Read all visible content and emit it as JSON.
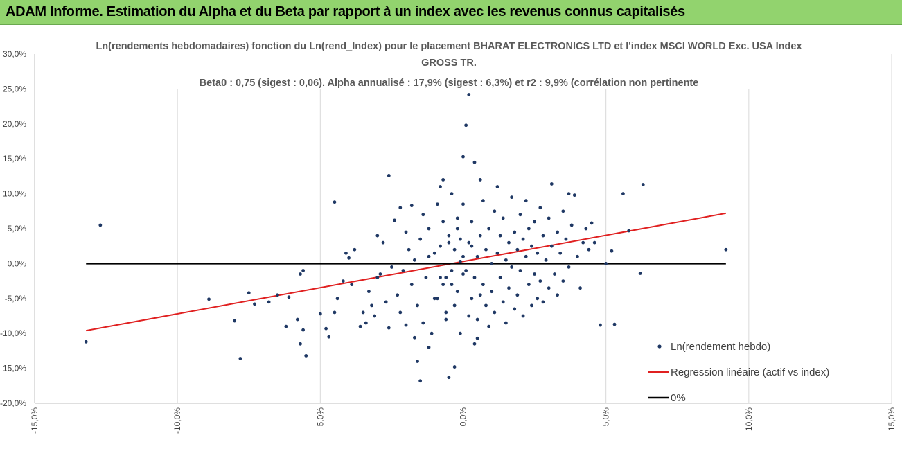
{
  "banner": {
    "title": "ADAM Informe. Estimation du Alpha et du Beta par rapport à un index avec les revenus connus capitalisés"
  },
  "colors": {
    "banner": "#92d36e",
    "points": "#1f3864",
    "regression": "#e02020",
    "zero": "#000000",
    "grid": "#d9d9d9"
  },
  "chart_data": {
    "type": "scatter",
    "title_lines": [
      "Ln(rendements hebdomadaires) fonction du Ln(rend_Index) pour le placement BHARAT ELECTRONICS LTD et l'index MSCI WORLD Exc. USA Index",
      "GROSS TR.",
      "Beta0 : 0,75  (sigest : 0,06).  Alpha annualisé : 17,9% (sigest : 6,3%) et r2 : 9,9% (corrélation non pertinente"
    ],
    "xlim": [
      -0.15,
      0.15
    ],
    "ylim": [
      -0.2,
      0.3
    ],
    "x_ticks": [
      "-15,0%",
      "-10,0%",
      "-5,0%",
      "0,0%",
      "5,0%",
      "10,0%",
      "15,0%"
    ],
    "y_ticks": [
      "30,0%",
      "25,0%",
      "20,0%",
      "15,0%",
      "10,0%",
      "5,0%",
      "0,0%",
      "-5,0%",
      "-10,0%",
      "-15,0%",
      "-20,0%"
    ],
    "grid": "vertical",
    "legend_position": "bottom-right",
    "series": [
      {
        "name": "Ln(rendement hebdo)",
        "kind": "scatter",
        "points": [
          [
            -0.132,
            -0.112
          ],
          [
            -0.127,
            0.055
          ],
          [
            -0.089,
            -0.051
          ],
          [
            -0.08,
            -0.082
          ],
          [
            -0.078,
            -0.136
          ],
          [
            -0.075,
            -0.042
          ],
          [
            -0.073,
            -0.058
          ],
          [
            -0.068,
            -0.055
          ],
          [
            -0.065,
            -0.045
          ],
          [
            -0.062,
            -0.09
          ],
          [
            -0.061,
            -0.048
          ],
          [
            -0.058,
            -0.08
          ],
          [
            -0.057,
            -0.115
          ],
          [
            -0.056,
            -0.095
          ],
          [
            -0.057,
            -0.015
          ],
          [
            -0.056,
            -0.01
          ],
          [
            -0.055,
            -0.132
          ],
          [
            -0.05,
            -0.072
          ],
          [
            -0.048,
            -0.093
          ],
          [
            -0.047,
            -0.105
          ],
          [
            -0.045,
            -0.07
          ],
          [
            -0.044,
            -0.05
          ],
          [
            -0.045,
            0.088
          ],
          [
            -0.042,
            -0.025
          ],
          [
            -0.041,
            0.015
          ],
          [
            -0.04,
            0.008
          ],
          [
            -0.039,
            -0.03
          ],
          [
            -0.038,
            0.02
          ],
          [
            -0.036,
            -0.09
          ],
          [
            -0.035,
            -0.07
          ],
          [
            -0.034,
            -0.085
          ],
          [
            -0.033,
            -0.04
          ],
          [
            -0.032,
            -0.06
          ],
          [
            -0.031,
            -0.075
          ],
          [
            -0.03,
            -0.02
          ],
          [
            -0.03,
            0.04
          ],
          [
            -0.029,
            -0.015
          ],
          [
            -0.028,
            0.03
          ],
          [
            -0.027,
            -0.055
          ],
          [
            -0.026,
            -0.092
          ],
          [
            -0.025,
            -0.005
          ],
          [
            -0.024,
            0.062
          ],
          [
            -0.023,
            -0.045
          ],
          [
            -0.022,
            -0.07
          ],
          [
            -0.021,
            -0.01
          ],
          [
            -0.02,
            -0.088
          ],
          [
            -0.019,
            0.02
          ],
          [
            -0.018,
            -0.03
          ],
          [
            -0.017,
            0.005
          ],
          [
            -0.016,
            -0.06
          ],
          [
            -0.015,
            0.035
          ],
          [
            -0.014,
            -0.085
          ],
          [
            -0.013,
            -0.02
          ],
          [
            -0.012,
            0.01
          ],
          [
            -0.011,
            -0.1
          ],
          [
            -0.01,
            0.015
          ],
          [
            -0.009,
            -0.05
          ],
          [
            -0.008,
            0.025
          ],
          [
            -0.007,
            -0.03
          ],
          [
            -0.006,
            -0.07
          ],
          [
            -0.005,
            0.04
          ],
          [
            -0.004,
            -0.01
          ],
          [
            -0.003,
            0.02
          ],
          [
            -0.002,
            -0.04
          ],
          [
            -0.001,
            0.003
          ],
          [
            -0.026,
            0.126
          ],
          [
            -0.022,
            0.08
          ],
          [
            -0.02,
            0.045
          ],
          [
            -0.018,
            0.083
          ],
          [
            -0.017,
            -0.106
          ],
          [
            -0.016,
            -0.14
          ],
          [
            -0.015,
            -0.168
          ],
          [
            -0.014,
            0.07
          ],
          [
            -0.012,
            0.05
          ],
          [
            -0.01,
            -0.05
          ],
          [
            -0.009,
            0.085
          ],
          [
            -0.008,
            -0.02
          ],
          [
            -0.007,
            0.06
          ],
          [
            -0.006,
            -0.08
          ],
          [
            -0.005,
            -0.163
          ],
          [
            -0.004,
            0.1
          ],
          [
            -0.003,
            -0.06
          ],
          [
            -0.002,
            0.05
          ],
          [
            -0.001,
            -0.1
          ],
          [
            -0.012,
            -0.12
          ],
          [
            -0.008,
            0.11
          ],
          [
            -0.007,
            0.12
          ],
          [
            -0.006,
            -0.02
          ],
          [
            -0.005,
            0.03
          ],
          [
            -0.004,
            -0.03
          ],
          [
            0.0,
            0.01
          ],
          [
            0.0,
            -0.015
          ],
          [
            0.0,
            0.153
          ],
          [
            0.001,
            0.198
          ],
          [
            0.002,
            0.242
          ],
          [
            0.001,
            -0.01
          ],
          [
            0.002,
            0.03
          ],
          [
            0.003,
            -0.05
          ],
          [
            0.003,
            0.06
          ],
          [
            0.004,
            -0.02
          ],
          [
            0.004,
            0.145
          ],
          [
            0.005,
            0.01
          ],
          [
            0.005,
            -0.08
          ],
          [
            0.006,
            0.12
          ],
          [
            0.006,
            0.04
          ],
          [
            0.007,
            -0.03
          ],
          [
            0.007,
            0.09
          ],
          [
            0.008,
            -0.06
          ],
          [
            0.008,
            0.02
          ],
          [
            0.009,
            -0.09
          ],
          [
            0.009,
            0.05
          ],
          [
            0.01,
            0.0
          ],
          [
            0.01,
            -0.04
          ],
          [
            0.011,
            0.075
          ],
          [
            0.011,
            -0.07
          ],
          [
            0.012,
            0.015
          ],
          [
            0.012,
            0.11
          ],
          [
            0.013,
            -0.02
          ],
          [
            0.013,
            0.04
          ],
          [
            0.014,
            -0.055
          ],
          [
            0.014,
            0.065
          ],
          [
            0.015,
            0.005
          ],
          [
            0.015,
            -0.085
          ],
          [
            0.016,
            0.03
          ],
          [
            0.016,
            -0.035
          ],
          [
            0.017,
            0.095
          ],
          [
            0.017,
            -0.005
          ],
          [
            0.018,
            0.045
          ],
          [
            0.018,
            -0.065
          ],
          [
            0.019,
            0.02
          ],
          [
            0.019,
            -0.045
          ],
          [
            0.02,
            0.07
          ],
          [
            0.02,
            -0.01
          ],
          [
            0.021,
            0.035
          ],
          [
            0.021,
            -0.075
          ],
          [
            0.022,
            0.01
          ],
          [
            0.022,
            0.09
          ],
          [
            0.023,
            -0.03
          ],
          [
            0.023,
            0.05
          ],
          [
            0.024,
            -0.06
          ],
          [
            0.024,
            0.025
          ],
          [
            0.025,
            -0.015
          ],
          [
            0.025,
            0.06
          ],
          [
            0.026,
            -0.05
          ],
          [
            0.026,
            0.015
          ],
          [
            0.027,
            0.08
          ],
          [
            0.027,
            -0.025
          ],
          [
            0.028,
            0.04
          ],
          [
            0.028,
            -0.055
          ],
          [
            0.029,
            0.005
          ],
          [
            0.03,
            0.065
          ],
          [
            0.03,
            -0.035
          ],
          [
            0.031,
            0.025
          ],
          [
            0.031,
            0.114
          ],
          [
            0.032,
            -0.015
          ],
          [
            0.033,
            0.045
          ],
          [
            0.033,
            -0.045
          ],
          [
            0.034,
            0.015
          ],
          [
            0.035,
            0.075
          ],
          [
            0.035,
            -0.025
          ],
          [
            0.036,
            0.035
          ],
          [
            0.037,
            0.1
          ],
          [
            0.037,
            -0.005
          ],
          [
            0.038,
            0.055
          ],
          [
            0.039,
            0.098
          ],
          [
            0.04,
            0.01
          ],
          [
            0.041,
            -0.035
          ],
          [
            0.042,
            0.03
          ],
          [
            0.043,
            0.05
          ],
          [
            0.044,
            0.02
          ],
          [
            0.045,
            0.058
          ],
          [
            0.046,
            0.03
          ],
          [
            0.048,
            -0.088
          ],
          [
            0.05,
            0.0
          ],
          [
            0.052,
            0.018
          ],
          [
            0.053,
            -0.087
          ],
          [
            0.056,
            0.1
          ],
          [
            0.058,
            0.047
          ],
          [
            0.062,
            -0.014
          ],
          [
            0.063,
            0.113
          ],
          [
            0.092,
            0.02
          ],
          [
            -0.003,
            -0.148
          ],
          [
            0.004,
            -0.115
          ],
          [
            0.005,
            -0.107
          ],
          [
            0.0,
            0.085
          ],
          [
            -0.002,
            0.065
          ],
          [
            0.002,
            -0.075
          ],
          [
            -0.001,
            0.035
          ],
          [
            0.003,
            0.025
          ],
          [
            0.006,
            -0.045
          ]
        ]
      },
      {
        "name": "Regression linéaire (actif vs index)",
        "kind": "line",
        "points": [
          [
            -0.132,
            -0.096
          ],
          [
            0.092,
            0.072
          ]
        ]
      },
      {
        "name": "0%",
        "kind": "line",
        "points": [
          [
            -0.132,
            0.0
          ],
          [
            0.092,
            0.0
          ]
        ]
      }
    ]
  }
}
